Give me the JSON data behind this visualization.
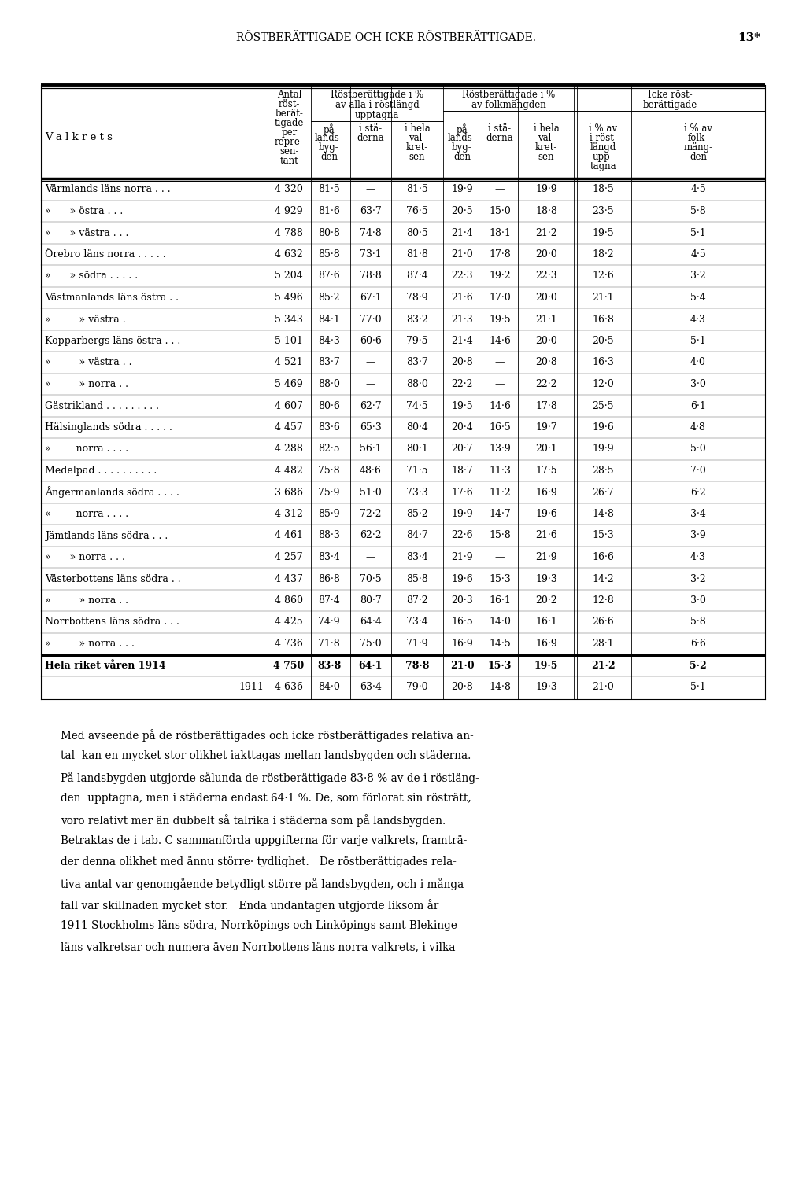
{
  "page_title": "RÖSTBERÄTTIGADE OCH ICKE RÖSTBERÄTTIGADE.",
  "page_number": "13*",
  "valkrets_label": "V a l k r e t s",
  "rows": [
    {
      "name": "Värmlands läns norra . . .",
      "vals": [
        "4 320",
        "81·5",
        "—",
        "81·5",
        "19·9",
        "—",
        "19·9",
        "18·5",
        "4·5"
      ]
    },
    {
      "name": "»      » östra . . .",
      "vals": [
        "4 929",
        "81·6",
        "63·7",
        "76·5",
        "20·5",
        "15·0",
        "18·8",
        "23·5",
        "5·8"
      ]
    },
    {
      "name": "»      » västra . . .",
      "vals": [
        "4 788",
        "80·8",
        "74·8",
        "80·5",
        "21·4",
        "18·1",
        "21·2",
        "19·5",
        "5·1"
      ]
    },
    {
      "name": "Örebro läns norra . . . . .",
      "vals": [
        "4 632",
        "85·8",
        "73·1",
        "81·8",
        "21·0",
        "17·8",
        "20·0",
        "18·2",
        "4·5"
      ]
    },
    {
      "name": "»      » södra . . . . .",
      "vals": [
        "5 204",
        "87·6",
        "78·8",
        "87·4",
        "22·3",
        "19·2",
        "22·3",
        "12·6",
        "3·2"
      ]
    },
    {
      "name": "Västmanlands läns östra . .",
      "vals": [
        "5 496",
        "85·2",
        "67·1",
        "78·9",
        "21·6",
        "17·0",
        "20·0",
        "21·1",
        "5·4"
      ]
    },
    {
      "name": "»         » västra .",
      "vals": [
        "5 343",
        "84·1",
        "77·0",
        "83·2",
        "21·3",
        "19·5",
        "21·1",
        "16·8",
        "4·3"
      ]
    },
    {
      "name": "Kopparbergs läns östra . . .",
      "vals": [
        "5 101",
        "84·3",
        "60·6",
        "79·5",
        "21·4",
        "14·6",
        "20·0",
        "20·5",
        "5·1"
      ]
    },
    {
      "name": "»         » västra . .",
      "vals": [
        "4 521",
        "83·7",
        "—",
        "83·7",
        "20·8",
        "—",
        "20·8",
        "16·3",
        "4·0"
      ]
    },
    {
      "name": "»         » norra . .",
      "vals": [
        "5 469",
        "88·0",
        "—",
        "88·0",
        "22·2",
        "—",
        "22·2",
        "12·0",
        "3·0"
      ]
    },
    {
      "name": "Gästrikland . . . . . . . . .",
      "vals": [
        "4 607",
        "80·6",
        "62·7",
        "74·5",
        "19·5",
        "14·6",
        "17·8",
        "25·5",
        "6·1"
      ]
    },
    {
      "name": "Hälsinglands södra . . . . .",
      "vals": [
        "4 457",
        "83·6",
        "65·3",
        "80·4",
        "20·4",
        "16·5",
        "19·7",
        "19·6",
        "4·8"
      ]
    },
    {
      "name": "»        norra . . . .",
      "vals": [
        "4 288",
        "82·5",
        "56·1",
        "80·1",
        "20·7",
        "13·9",
        "20·1",
        "19·9",
        "5·0"
      ]
    },
    {
      "name": "Medelpad . . . . . . . . . .",
      "vals": [
        "4 482",
        "75·8",
        "48·6",
        "71·5",
        "18·7",
        "11·3",
        "17·5",
        "28·5",
        "7·0"
      ]
    },
    {
      "name": "Ångermanlands södra . . . .",
      "vals": [
        "3 686",
        "75·9",
        "51·0",
        "73·3",
        "17·6",
        "11·2",
        "16·9",
        "26·7",
        "6·2"
      ]
    },
    {
      "name": "«        norra . . . .",
      "vals": [
        "4 312",
        "85·9",
        "72·2",
        "85·2",
        "19·9",
        "14·7",
        "19·6",
        "14·8",
        "3·4"
      ]
    },
    {
      "name": "Jämtlands läns södra . . .",
      "vals": [
        "4 461",
        "88·3",
        "62·2",
        "84·7",
        "22·6",
        "15·8",
        "21·6",
        "15·3",
        "3·9"
      ]
    },
    {
      "name": "»      » norra . . .",
      "vals": [
        "4 257",
        "83·4",
        "—",
        "83·4",
        "21·9",
        "—",
        "21·9",
        "16·6",
        "4·3"
      ]
    },
    {
      "name": "Västerbottens läns södra . .",
      "vals": [
        "4 437",
        "86·8",
        "70·5",
        "85·8",
        "19·6",
        "15·3",
        "19·3",
        "14·2",
        "3·2"
      ]
    },
    {
      "name": "»         » norra . .",
      "vals": [
        "4 860",
        "87·4",
        "80·7",
        "87·2",
        "20·3",
        "16·1",
        "20·2",
        "12·8",
        "3·0"
      ]
    },
    {
      "name": "Norrbottens läns södra . . .",
      "vals": [
        "4 425",
        "74·9",
        "64·4",
        "73·4",
        "16·5",
        "14·0",
        "16·1",
        "26·6",
        "5·8"
      ]
    },
    {
      "name": "»         » norra . . .",
      "vals": [
        "4 736",
        "71·8",
        "75·0",
        "71·9",
        "16·9",
        "14·5",
        "16·9",
        "28·1",
        "6·6"
      ]
    }
  ],
  "summary_rows": [
    {
      "name": "Hela riket våren 1914",
      "bold": true,
      "indent_right": true,
      "vals": [
        "4 750",
        "83·8",
        "64·1",
        "78·8",
        "21·0",
        "15·3",
        "19·5",
        "21·2",
        "5·2"
      ]
    },
    {
      "name": "1911",
      "bold": false,
      "indent_right": true,
      "vals": [
        "4 636",
        "84·0",
        "63·4",
        "79·0",
        "20·8",
        "14·8",
        "19·3",
        "21·0",
        "5·1"
      ]
    }
  ],
  "body_text": [
    "Med avseende på de röstberättigades och icke röstberättigades relativa an-",
    "tal  kan en mycket stor olikhet iakttagas mellan landsbygden och städerna.",
    "På landsbygden utgjorde sålunda de röstberättigade 83·8 % av de i röstläng-",
    "den  upptagna, men i städerna endast 64·1 %. De, som förlorat sin rösträtt,",
    "voro relativt mer än dubbelt så talrika i städerna som på landsbygden.",
    "Betraktas de i tab. C sammanförda uppgifterna för varje valkrets, framträ-",
    "der denna olikhet med ännu större· tydlighet.   De röstberättigades rela-",
    "tiva antal var genomgående betydligt större på landsbygden, och i många",
    "fall var skillnaden mycket stor.   Enda undantagen utgjorde liksom år",
    "1911 Stockholms läns södra, Norrköpings och Linköpings samt Blekinge",
    "läns valkretsar och numera även Norrbottens läns norra valkrets, i vilka"
  ]
}
